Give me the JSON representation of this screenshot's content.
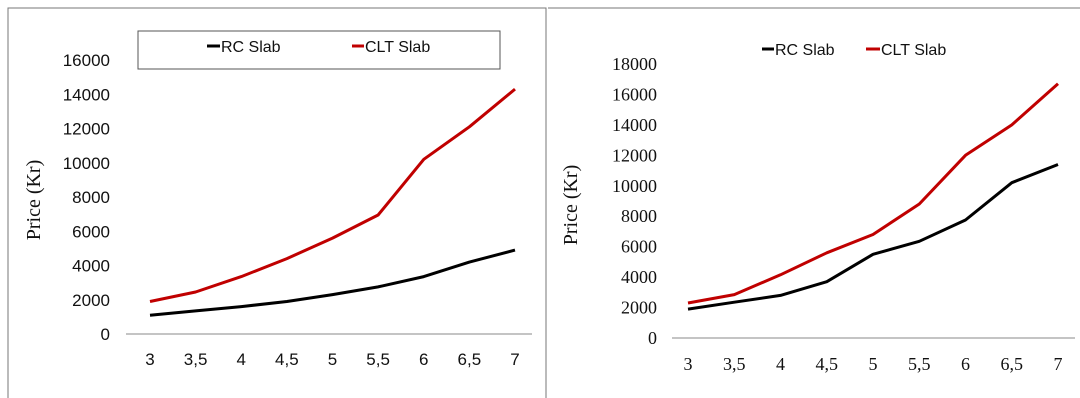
{
  "chart_data": [
    {
      "type": "line",
      "categories": [
        "3",
        "3,5",
        "4",
        "4,5",
        "5",
        "5,5",
        "6",
        "6,5",
        "7"
      ],
      "series": [
        {
          "name": "RC Slab",
          "color": "#000000",
          "values": [
            1100,
            1350,
            1600,
            1900,
            2300,
            2750,
            3350,
            4200,
            4900
          ]
        },
        {
          "name": "CLT Slab",
          "color": "#c00000",
          "values": [
            1900,
            2450,
            3350,
            4400,
            5600,
            6950,
            10200,
            12100,
            14300
          ]
        }
      ],
      "title": "",
      "xlabel": "",
      "ylabel": "Price (Kr)",
      "ylim": [
        0,
        16000
      ],
      "yticks": [
        "0",
        "2000",
        "4000",
        "6000",
        "8000",
        "10000",
        "12000",
        "14000",
        "16000"
      ],
      "grid": false,
      "legend": "top"
    },
    {
      "type": "line",
      "categories": [
        "3",
        "3,5",
        "4",
        "4,5",
        "5",
        "5,5",
        "6",
        "6,5",
        "7"
      ],
      "series": [
        {
          "name": "RC Slab",
          "color": "#000000",
          "values": [
            1900,
            2350,
            2800,
            3700,
            5500,
            6350,
            7750,
            10200,
            11400
          ]
        },
        {
          "name": "CLT Slab",
          "color": "#c00000",
          "values": [
            2300,
            2850,
            4150,
            5600,
            6800,
            8800,
            12000,
            14000,
            16700
          ]
        }
      ],
      "title": "",
      "xlabel": "",
      "ylabel": "Price (Kr)",
      "ylim": [
        0,
        18000
      ],
      "yticks": [
        "0",
        "2000",
        "4000",
        "6000",
        "8000",
        "10000",
        "12000",
        "14000",
        "16000",
        "18000"
      ],
      "grid": false,
      "legend": "top"
    }
  ]
}
